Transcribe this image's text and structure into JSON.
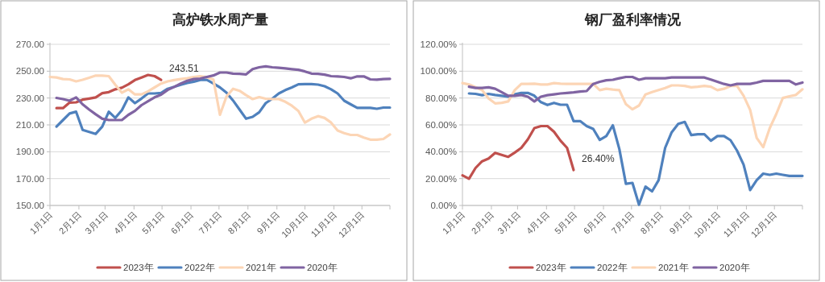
{
  "chart_data": [
    {
      "type": "line",
      "title": "高炉铁水周产量",
      "x": [
        "--01-01",
        "--01-08",
        "--01-15",
        "--01-22",
        "--01-29",
        "--02-05",
        "--02-12",
        "--02-19",
        "--02-26",
        "--03-05",
        "--03-12",
        "--03-19",
        "--03-26",
        "--04-02",
        "--04-09",
        "--04-16",
        "--04-23",
        "--04-30",
        "--05-07",
        "--05-14",
        "--05-21",
        "--05-28",
        "--06-04",
        "--06-11",
        "--06-18",
        "--06-25",
        "--07-02",
        "--07-09",
        "--07-16",
        "--07-23",
        "--07-30",
        "--08-06",
        "--08-13",
        "--08-20",
        "--08-27",
        "--09-03",
        "--09-10",
        "--09-17",
        "--09-24",
        "--10-01",
        "--10-08",
        "--10-15",
        "--10-22",
        "--10-29",
        "--11-05",
        "--11-12",
        "--11-19",
        "--11-26",
        "--12-03",
        "--12-10",
        "--12-17",
        "--12-24",
        "--12-31"
      ],
      "xlim": [
        "--01-01",
        "--12-31"
      ],
      "xticks": [
        {
          "value": "--01-01",
          "label": "1月1日"
        },
        {
          "value": "--02-01",
          "label": "2月1日"
        },
        {
          "value": "--03-01",
          "label": "3月1日"
        },
        {
          "value": "--04-01",
          "label": "4月1日"
        },
        {
          "value": "--05-01",
          "label": "5月1日"
        },
        {
          "value": "--06-01",
          "label": "6月1日"
        },
        {
          "value": "--07-01",
          "label": "7月1日"
        },
        {
          "value": "--08-01",
          "label": "8月1日"
        },
        {
          "value": "--09-01",
          "label": "9月1日"
        },
        {
          "value": "--10-01",
          "label": "10月1日"
        },
        {
          "value": "--11-01",
          "label": "11月1日"
        },
        {
          "value": "--12-01",
          "label": "12月1日"
        }
      ],
      "ylim": [
        150,
        270
      ],
      "yticks": [
        {
          "value": 150,
          "label": "150.00"
        },
        {
          "value": 170,
          "label": "170.00"
        },
        {
          "value": 190,
          "label": "190.00"
        },
        {
          "value": 210,
          "label": "210.00"
        },
        {
          "value": 230,
          "label": "230.00"
        },
        {
          "value": 250,
          "label": "250.00"
        },
        {
          "value": 270,
          "label": "270.00"
        }
      ],
      "grid": "y",
      "legend": "bottom",
      "series": [
        {
          "name": "2023年",
          "color": "#c0504d",
          "values": [
            null,
            222.5,
            222.5,
            226.6,
            226.8,
            228.8,
            229.6,
            230.5,
            233.6,
            234.4,
            236.5,
            237.7,
            240.2,
            243.4,
            245.3,
            247.2,
            246.3,
            243.51,
            null,
            null,
            null,
            null,
            null,
            null,
            null,
            null,
            null,
            null,
            null,
            null,
            null,
            null,
            null,
            null,
            null,
            null,
            null,
            null,
            null,
            null,
            null,
            null,
            null,
            null,
            null,
            null,
            null,
            null,
            null,
            null,
            null,
            null,
            null
          ],
          "value_labels": [
            null,
            null,
            null,
            null,
            null,
            null,
            null,
            null,
            null,
            null,
            null,
            null,
            null,
            null,
            null,
            null,
            null,
            "243.51",
            null,
            null,
            null,
            null,
            null,
            null,
            null,
            null,
            null,
            null,
            null,
            null,
            null,
            null,
            null,
            null,
            null,
            null,
            null,
            null,
            null,
            null,
            null,
            null,
            null,
            null,
            null,
            null,
            null,
            null,
            null,
            null,
            null,
            null,
            null
          ]
        },
        {
          "name": "2022年",
          "color": "#4f81bd",
          "values": [
            null,
            208.7,
            213.6,
            218.5,
            219.8,
            206.2,
            204.8,
            203.3,
            208.7,
            219.8,
            215.2,
            221.0,
            230.5,
            226.2,
            229.6,
            233.4,
            233.4,
            233.8,
            236.9,
            238.3,
            239.9,
            241.2,
            242.2,
            243.5,
            243.5,
            240.8,
            237.9,
            234.0,
            228.2,
            221.4,
            214.6,
            216.0,
            219.4,
            226.2,
            229.5,
            233.4,
            235.9,
            237.9,
            240.2,
            240.4,
            240.4,
            240.0,
            238.8,
            236.5,
            233.4,
            228.0,
            225.3,
            222.7,
            222.7,
            222.7,
            222.0,
            222.9,
            222.9
          ]
        },
        {
          "name": "2021年",
          "color": "#fcd5b5",
          "values": [
            245.7,
            245.3,
            244.1,
            243.9,
            242.4,
            243.6,
            245.1,
            246.7,
            246.7,
            246.3,
            239.9,
            234.0,
            236.5,
            232.7,
            232.7,
            235.0,
            237.9,
            240.8,
            242.4,
            243.4,
            244.1,
            244.7,
            245.7,
            246.3,
            245.6,
            243.8,
            217.5,
            231.1,
            236.9,
            235.4,
            232.1,
            229.2,
            230.7,
            229.5,
            229.2,
            229.2,
            227.2,
            224.3,
            220.4,
            211.7,
            214.6,
            216.5,
            215.2,
            211.7,
            205.8,
            203.9,
            202.5,
            202.5,
            200.6,
            199.0,
            199.0,
            199.5,
            202.9
          ]
        },
        {
          "name": "2020年",
          "color": "#8064a2",
          "values": [
            null,
            230.1,
            229.2,
            228.0,
            230.5,
            225.3,
            221.4,
            217.9,
            214.6,
            213.6,
            213.6,
            213.6,
            217.5,
            220.4,
            224.7,
            227.6,
            230.5,
            232.5,
            236.0,
            238.3,
            240.8,
            242.8,
            244.1,
            244.5,
            245.7,
            246.8,
            249.0,
            249.0,
            248.2,
            248.0,
            247.6,
            251.5,
            252.9,
            253.6,
            252.9,
            252.5,
            252.1,
            251.5,
            251.0,
            249.8,
            248.2,
            248.0,
            247.4,
            246.3,
            246.1,
            245.7,
            244.7,
            246.1,
            246.1,
            243.9,
            243.7,
            244.1,
            244.3
          ]
        }
      ]
    },
    {
      "type": "line",
      "title": "钢厂盈利率情况",
      "x": [
        "--01-01",
        "--01-08",
        "--01-15",
        "--01-22",
        "--01-29",
        "--02-05",
        "--02-12",
        "--02-19",
        "--02-26",
        "--03-05",
        "--03-12",
        "--03-19",
        "--03-26",
        "--04-02",
        "--04-09",
        "--04-16",
        "--04-23",
        "--04-30",
        "--05-07",
        "--05-14",
        "--05-21",
        "--05-28",
        "--06-04",
        "--06-11",
        "--06-18",
        "--06-25",
        "--07-02",
        "--07-09",
        "--07-16",
        "--07-23",
        "--07-30",
        "--08-06",
        "--08-13",
        "--08-20",
        "--08-27",
        "--09-03",
        "--09-10",
        "--09-17",
        "--09-24",
        "--10-01",
        "--10-08",
        "--10-15",
        "--10-22",
        "--10-29",
        "--11-05",
        "--11-12",
        "--11-19",
        "--11-26",
        "--12-03",
        "--12-10",
        "--12-17",
        "--12-24",
        "--12-31"
      ],
      "xlim": [
        "--01-01",
        "--12-31"
      ],
      "xticks": [
        {
          "value": "--01-01",
          "label": "1月1日"
        },
        {
          "value": "--02-01",
          "label": "2月1日"
        },
        {
          "value": "--03-01",
          "label": "3月1日"
        },
        {
          "value": "--04-01",
          "label": "4月1日"
        },
        {
          "value": "--05-01",
          "label": "5月1日"
        },
        {
          "value": "--06-01",
          "label": "6月1日"
        },
        {
          "value": "--07-01",
          "label": "7月1日"
        },
        {
          "value": "--08-01",
          "label": "8月1日"
        },
        {
          "value": "--09-01",
          "label": "9月1日"
        },
        {
          "value": "--10-01",
          "label": "10月1日"
        },
        {
          "value": "--11-01",
          "label": "11月1日"
        },
        {
          "value": "--12-01",
          "label": "12月1日"
        }
      ],
      "ylim": [
        0,
        120
      ],
      "yticks": [
        {
          "value": 0,
          "label": "0.00%"
        },
        {
          "value": 20,
          "label": "20.00%"
        },
        {
          "value": 40,
          "label": "40.00%"
        },
        {
          "value": 60,
          "label": "60.00%"
        },
        {
          "value": 80,
          "label": "80.00%"
        },
        {
          "value": 100,
          "label": "100.00%"
        },
        {
          "value": 120,
          "label": "120.00%"
        }
      ],
      "grid": "y",
      "legend": "bottom",
      "series": [
        {
          "name": "2023年",
          "color": "#c0504d",
          "values": [
            22.4,
            19.9,
            27.9,
            32.9,
            35.0,
            39.2,
            37.7,
            36.2,
            39.4,
            42.9,
            49.2,
            57.6,
            59.1,
            59.1,
            54.9,
            48.2,
            42.9,
            26.4,
            null,
            null,
            null,
            null,
            null,
            null,
            null,
            null,
            null,
            null,
            null,
            null,
            null,
            null,
            null,
            null,
            null,
            null,
            null,
            null,
            null,
            null,
            null,
            null,
            null,
            null,
            null,
            null,
            null,
            null,
            null,
            null,
            null,
            null,
            null
          ],
          "value_labels": [
            null,
            null,
            null,
            null,
            null,
            null,
            null,
            null,
            null,
            null,
            null,
            null,
            null,
            null,
            null,
            null,
            null,
            "26.40%",
            null,
            null,
            null,
            null,
            null,
            null,
            null,
            null,
            null,
            null,
            null,
            null,
            null,
            null,
            null,
            null,
            null,
            null,
            null,
            null,
            null,
            null,
            null,
            null,
            null,
            null,
            null,
            null,
            null,
            null,
            null,
            null,
            null,
            null,
            null
          ]
        },
        {
          "name": "2022年",
          "color": "#4f81bd",
          "values": [
            null,
            83.4,
            83.1,
            82.1,
            83.1,
            82.3,
            81.7,
            81.0,
            82.7,
            83.8,
            83.8,
            81.7,
            76.9,
            74.8,
            76.4,
            75.0,
            75.0,
            62.8,
            62.8,
            59.1,
            57.0,
            48.8,
            51.7,
            59.7,
            41.9,
            16.1,
            16.8,
            0.6,
            14.0,
            10.5,
            18.8,
            42.9,
            54.5,
            60.7,
            62.2,
            52.4,
            53.0,
            53.0,
            48.2,
            51.7,
            51.7,
            48.6,
            40.8,
            30.4,
            11.5,
            18.8,
            23.7,
            22.8,
            23.7,
            22.8,
            22.0,
            22.0,
            22.0
          ]
        },
        {
          "name": "2021年",
          "color": "#fcd5b5",
          "values": [
            91.1,
            90.1,
            88.0,
            85.9,
            79.6,
            76.0,
            76.4,
            77.5,
            85.9,
            90.5,
            90.5,
            90.7,
            90.1,
            90.1,
            91.1,
            90.7,
            90.5,
            90.5,
            90.5,
            90.5,
            90.5,
            85.9,
            86.9,
            86.3,
            85.9,
            75.4,
            71.6,
            74.4,
            82.7,
            84.4,
            85.9,
            87.5,
            89.4,
            89.4,
            89.0,
            88.0,
            88.4,
            89.0,
            88.4,
            85.9,
            86.9,
            89.0,
            89.0,
            81.7,
            71.2,
            50.3,
            43.4,
            57.6,
            68.1,
            80.0,
            81.3,
            82.3,
            86.5
          ]
        },
        {
          "name": "2020年",
          "color": "#8064a2",
          "values": [
            null,
            88.4,
            87.5,
            87.5,
            88.0,
            86.9,
            84.4,
            81.7,
            81.7,
            82.3,
            81.0,
            77.5,
            81.0,
            82.1,
            82.7,
            83.4,
            83.8,
            84.2,
            84.8,
            85.2,
            90.5,
            92.1,
            93.2,
            93.6,
            94.7,
            95.7,
            95.7,
            93.6,
            94.7,
            94.7,
            94.7,
            94.7,
            95.3,
            95.3,
            95.3,
            95.3,
            95.3,
            95.3,
            93.8,
            92.1,
            90.5,
            89.4,
            90.5,
            90.5,
            90.5,
            91.5,
            92.8,
            92.8,
            92.8,
            92.8,
            92.8,
            90.1,
            91.5
          ]
        }
      ]
    }
  ]
}
